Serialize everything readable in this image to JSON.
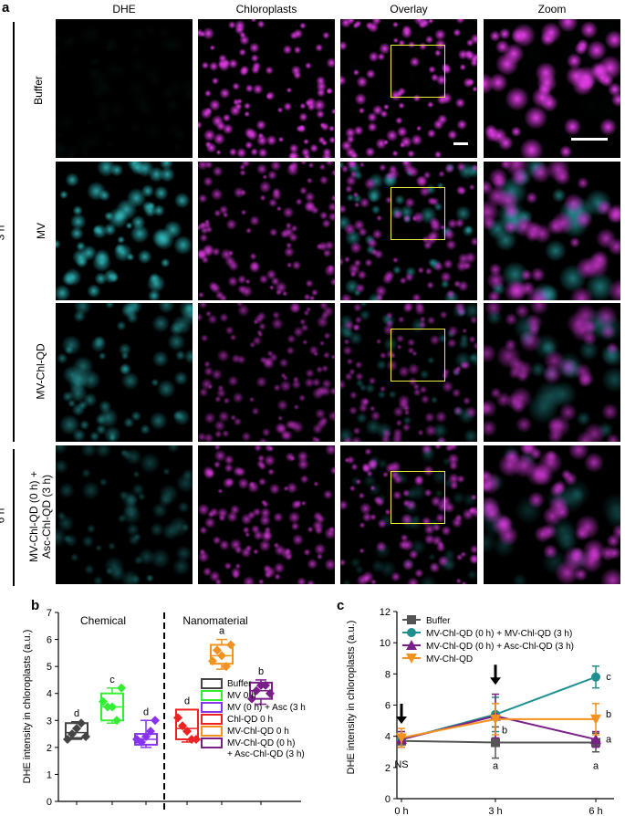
{
  "panel_labels": {
    "a": "a",
    "b": "b",
    "c": "c"
  },
  "panel_a": {
    "columns": [
      "DHE",
      "Chloroplasts",
      "Overlay",
      "Zoom"
    ],
    "time_labels": [
      "3 h",
      "6 h"
    ],
    "rows": [
      {
        "label": "Buffer",
        "dhe_level": 0.03,
        "chl_level": 1.0
      },
      {
        "label": "MV",
        "dhe_level": 0.8,
        "chl_level": 0.75
      },
      {
        "label": "MV-Chl-QD",
        "dhe_level": 0.5,
        "chl_level": 0.6
      },
      {
        "label_line1": "MV-Chl-QD (0 h) +",
        "label_line2": "Asc-Chl-QD (3 h)",
        "dhe_level": 0.3,
        "chl_level": 0.75
      }
    ],
    "colors": {
      "dhe": "#35c8cc",
      "chloroplast": "#e23ce6",
      "roi_box": "#f2e93a",
      "background": "#000000"
    }
  },
  "chart_data": [
    {
      "type": "box",
      "ylabel": "DHE intensity in chloroplasts (a.u.)",
      "ylim": [
        0,
        7
      ],
      "yticks": [
        0,
        1,
        2,
        3,
        4,
        5,
        6,
        7
      ],
      "group_labels": [
        "Chemical",
        "Nanomaterial"
      ],
      "series": [
        {
          "name": "Buffer",
          "color": "#444444",
          "letter": "d",
          "points": [
            2.3,
            2.5,
            2.7,
            2.9,
            2.4
          ],
          "q1": 2.35,
          "median": 2.55,
          "q3": 2.9,
          "min": 2.3,
          "max": 2.95
        },
        {
          "name": "MV 0 h",
          "color": "#33ee33",
          "letter": "c",
          "points": [
            3.7,
            3.5,
            3.5,
            3.0,
            4.2
          ],
          "q1": 3.0,
          "median": 3.5,
          "q3": 4.0,
          "min": 2.9,
          "max": 4.2
        },
        {
          "name": "MV (0 h) + Asc (3 h)",
          "color": "#8833ee",
          "letter": "d",
          "points": [
            2.3,
            2.2,
            2.4,
            2.6,
            3.0
          ],
          "q1": 2.1,
          "median": 2.3,
          "q3": 2.5,
          "min": 2.0,
          "max": 3.0
        },
        {
          "name": "Chl-QD 0 h",
          "color": "#ee2222",
          "letter": "d",
          "points": [
            3.1,
            2.8,
            2.6,
            2.3,
            2.3
          ],
          "q1": 2.3,
          "median": 2.7,
          "q3": 3.4,
          "min": 2.2,
          "max": 3.4
        },
        {
          "name": "MV-Chl-QD 0 h",
          "color": "#f5911e",
          "letter": "a",
          "points": [
            5.2,
            5.6,
            5.4,
            5.0,
            5.8
          ],
          "q1": 5.1,
          "median": 5.4,
          "q3": 5.8,
          "min": 4.9,
          "max": 6.0
        },
        {
          "name": "MV-Chl-QD (0 h) + Asc-Chl-QD (3 h)",
          "legend_line1": "MV-Chl-QD (0 h)",
          "legend_line2": "+ Asc-Chl-QD (3 h)",
          "color": "#7a1f8a",
          "letter": "b",
          "points": [
            3.8,
            4.1,
            4.3,
            4.3,
            4.0
          ],
          "q1": 3.8,
          "median": 4.1,
          "q3": 4.4,
          "min": 3.6,
          "max": 4.5
        }
      ]
    },
    {
      "type": "line",
      "ylabel": "DHE intensity in chloroplasts (a.u.)",
      "x": [
        "0 h",
        "3 h",
        "6 h"
      ],
      "ylim": [
        0,
        12
      ],
      "yticks": [
        0,
        2,
        4,
        6,
        8,
        10,
        12
      ],
      "series": [
        {
          "name": "Buffer",
          "color": "#555555",
          "marker": "square",
          "values": [
            3.7,
            3.6,
            3.6
          ],
          "errors": [
            0.4,
            1.0,
            0.6
          ]
        },
        {
          "name": "MV-Chl-QD (0 h) + MV-Chl-QD (3 h)",
          "color": "#1f8f8f",
          "marker": "circle",
          "values": [
            3.8,
            5.4,
            7.8
          ],
          "errors": [
            0.5,
            1.1,
            0.7
          ]
        },
        {
          "name": "MV-Chl-QD (0 h) + Asc-Chl-QD (3 h)",
          "color": "#7a1f8a",
          "marker": "triangle-up",
          "values": [
            3.8,
            5.3,
            3.8
          ],
          "errors": [
            0.5,
            1.4,
            0.5
          ]
        },
        {
          "name": "MV-Chl-QD",
          "color": "#f5911e",
          "marker": "triangle-down",
          "values": [
            3.9,
            5.1,
            5.1
          ],
          "errors": [
            0.6,
            1.0,
            1.0
          ]
        }
      ],
      "annotations": {
        "ns": "NS",
        "letters_3h": [
          "b",
          "a"
        ],
        "letters_6h": [
          "c",
          "b",
          "a",
          "a"
        ]
      }
    }
  ]
}
